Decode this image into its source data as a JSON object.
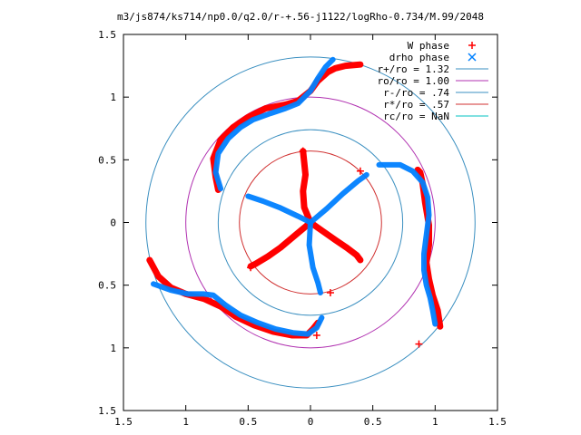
{
  "chart_data": {
    "type": "scatter",
    "title": "m3/js874/ks714/np0.0/q2.0/r-+.56-j1122/logRho-0.734/M.99/2048",
    "xlim": [
      -1.5,
      1.5
    ],
    "ylim": [
      -1.5,
      1.5
    ],
    "x_ticks": [
      -1.5,
      -1,
      -0.5,
      0,
      0.5,
      1,
      1.5
    ],
    "x_tick_labels": [
      "1.5",
      "1",
      "0.5",
      "0",
      "0.5",
      "1",
      "1.5"
    ],
    "y_ticks": [
      1.5,
      1,
      0.5,
      0,
      -0.5,
      -1,
      -1.5
    ],
    "y_tick_labels": [
      "1.5",
      "1",
      "0.5",
      "0",
      "0.5",
      "1",
      "1.5"
    ],
    "grid": false,
    "legend_position": "top-right",
    "legend": [
      {
        "label": "W phase",
        "marker": "+",
        "color": "#ff0000"
      },
      {
        "label": "drho phase",
        "marker": "x",
        "color": "#0080ff"
      },
      {
        "label": "r+/ro = 1.32",
        "marker": "line",
        "color": "#3a8fc0"
      },
      {
        "label": "ro/ro = 1.00",
        "marker": "line",
        "color": "#b030b0"
      },
      {
        "label": "r-/ro = .74",
        "marker": "line",
        "color": "#3a8fc0"
      },
      {
        "label": "r*/ro = .57",
        "marker": "line",
        "color": "#d03030"
      },
      {
        "label": "rc/ro = NaN",
        "marker": "line",
        "color": "#00c0c0"
      }
    ],
    "circles": [
      {
        "name": "r+/ro = 1.32",
        "radius": 1.32,
        "color": "#3a8fc0"
      },
      {
        "name": "ro/ro = 1.00",
        "radius": 1.0,
        "color": "#b030b0"
      },
      {
        "name": "r-/ro = .74",
        "radius": 0.74,
        "color": "#3a8fc0"
      },
      {
        "name": "r*/ro = .57",
        "radius": 0.57,
        "color": "#d03030"
      }
    ],
    "series": [
      {
        "name": "W phase",
        "color": "#ff0000",
        "curves": [
          {
            "x": [
              0,
              -0.05,
              -0.06,
              -0.04,
              -0.05,
              -0.06
            ],
            "y": [
              0,
              0.12,
              0.25,
              0.38,
              0.48,
              0.57
            ]
          },
          {
            "x": [
              0,
              0.1,
              0.2,
              0.29,
              0.37,
              0.4
            ],
            "y": [
              0,
              -0.07,
              -0.14,
              -0.2,
              -0.26,
              -0.3
            ]
          },
          {
            "x": [
              0,
              -0.12,
              -0.24,
              -0.34,
              -0.44,
              -0.48
            ],
            "y": [
              0,
              -0.1,
              -0.2,
              -0.27,
              -0.33,
              -0.35
            ]
          },
          {
            "x": [
              1.04,
              1.02,
              0.98,
              0.95,
              0.93,
              0.95,
              0.95,
              0.92,
              0.9,
              0.88,
              0.86
            ],
            "y": [
              -0.83,
              -0.7,
              -0.58,
              -0.45,
              -0.32,
              -0.18,
              -0.02,
              0.16,
              0.31,
              0.4,
              0.42
            ]
          },
          {
            "x": [
              -0.74,
              -0.76,
              -0.78,
              -0.72,
              -0.62,
              -0.5,
              -0.36,
              -0.2,
              -0.1,
              0.0,
              0.06,
              0.14,
              0.2,
              0.28,
              0.4
            ],
            "y": [
              0.26,
              0.36,
              0.51,
              0.66,
              0.76,
              0.84,
              0.91,
              0.94,
              0.97,
              1.05,
              1.13,
              1.2,
              1.23,
              1.25,
              1.26
            ]
          },
          {
            "x": [
              -1.29,
              -1.22,
              -1.12,
              -1.0,
              -0.85,
              -0.72,
              -0.6,
              -0.45,
              -0.3,
              -0.15,
              -0.03,
              0.02,
              0.06
            ],
            "y": [
              -0.3,
              -0.43,
              -0.52,
              -0.57,
              -0.61,
              -0.67,
              -0.75,
              -0.82,
              -0.87,
              -0.9,
              -0.9,
              -0.85,
              -0.8
            ]
          }
        ]
      },
      {
        "name": "drho phase",
        "color": "#0080ff",
        "curves": [
          {
            "x": [
              0.0,
              -0.1,
              -0.25,
              -0.38,
              -0.5
            ],
            "y": [
              0.0,
              0.05,
              0.12,
              0.17,
              0.21
            ]
          },
          {
            "x": [
              0.0,
              0.13,
              0.26,
              0.38,
              0.45
            ],
            "y": [
              0.0,
              0.11,
              0.23,
              0.33,
              0.38
            ]
          },
          {
            "x": [
              0.0,
              -0.01,
              0.02,
              0.06,
              0.08
            ],
            "y": [
              0.0,
              -0.18,
              -0.36,
              -0.48,
              -0.56
            ]
          },
          {
            "x": [
              1.0,
              0.98,
              0.96,
              0.93,
              0.91,
              0.91,
              0.93,
              0.95,
              0.94,
              0.9,
              0.82,
              0.72,
              0.55
            ],
            "y": [
              -0.81,
              -0.7,
              -0.6,
              -0.5,
              -0.38,
              -0.25,
              -0.1,
              0.06,
              0.2,
              0.32,
              0.41,
              0.46,
              0.46
            ]
          },
          {
            "x": [
              -0.72,
              -0.76,
              -0.74,
              -0.66,
              -0.56,
              -0.46,
              -0.32,
              -0.2,
              -0.1,
              0.0,
              0.06,
              0.12,
              0.18
            ],
            "y": [
              0.27,
              0.4,
              0.55,
              0.67,
              0.76,
              0.82,
              0.87,
              0.91,
              0.95,
              1.05,
              1.15,
              1.24,
              1.3
            ]
          },
          {
            "x": [
              -1.26,
              -1.12,
              -0.98,
              -0.86,
              -0.78,
              -0.68,
              -0.56,
              -0.42,
              -0.28,
              -0.14,
              -0.02,
              0.05,
              0.09
            ],
            "y": [
              -0.49,
              -0.54,
              -0.57,
              -0.57,
              -0.58,
              -0.66,
              -0.74,
              -0.8,
              -0.85,
              -0.88,
              -0.89,
              -0.84,
              -0.76
            ]
          }
        ]
      }
    ],
    "w_marker_points": {
      "x": [
        -0.06,
        0.4,
        0.16,
        -0.48,
        0.87,
        0.05
      ],
      "y": [
        0.57,
        0.41,
        -0.56,
        -0.36,
        -0.97,
        -0.9
      ]
    }
  }
}
